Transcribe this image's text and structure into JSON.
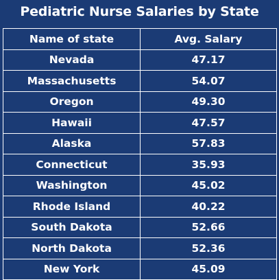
{
  "title": "Pediatric Nurse Salaries by State",
  "table": {
    "headers": [
      "Name of state",
      "Avg. Salary"
    ],
    "rows": [
      [
        "Nevada",
        "47.17"
      ],
      [
        "Massachusetts",
        "54.07"
      ],
      [
        "Oregon",
        "49.30"
      ],
      [
        "Hawaii",
        "47.57"
      ],
      [
        "Alaska",
        "57.83"
      ],
      [
        "Connecticut",
        "35.93"
      ],
      [
        "Washington",
        "45.02"
      ],
      [
        "Rhode Island",
        "40.22"
      ],
      [
        "South Dakota",
        "52.66"
      ],
      [
        "North Dakota",
        "52.36"
      ],
      [
        "New York",
        "45.09"
      ]
    ]
  },
  "colors": {
    "background": "#1b3b75",
    "text": "#ffffff",
    "grid": "#ffffff"
  }
}
